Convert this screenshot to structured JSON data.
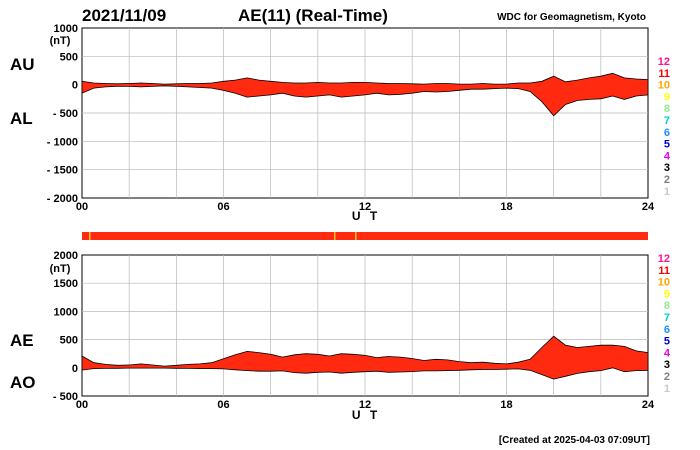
{
  "header": {
    "date": "2021/11/09",
    "title": "AE(11) (Real-Time)",
    "source": "WDC for Geomagnetism, Kyoto"
  },
  "footer": {
    "created": "[Created at 2025-04-03 07:09UT]"
  },
  "colors": {
    "fill": "#ff2a10",
    "station_bar": "#ff2a10",
    "station_bar_marks": "#f0c020"
  },
  "stations": {
    "labels": [
      "12",
      "11",
      "10",
      "9",
      "8",
      "7",
      "6",
      "5",
      "4",
      "3",
      "2",
      "1"
    ],
    "colors": [
      "#ff1493",
      "#ff0000",
      "#ffa500",
      "#ffff00",
      "#90ee90",
      "#00ced1",
      "#1e90ff",
      "#0000cd",
      "#ee00ee",
      "#000000",
      "#808080",
      "#c8c8c8"
    ]
  },
  "chart_data": [
    {
      "type": "area",
      "series_labels": [
        "AU",
        "AL"
      ],
      "unit": "(nT)",
      "xlabel": "U T",
      "xticks": [
        0,
        6,
        12,
        18,
        24
      ],
      "xtick_labels": [
        "00",
        "06",
        "12",
        "18",
        "24"
      ],
      "xlim": [
        0,
        24
      ],
      "ylim": [
        -2000,
        1000
      ],
      "yticks": [
        1000,
        500,
        0,
        -500,
        -1000,
        -1500,
        -2000
      ],
      "ytick_labels": [
        "1000",
        "500",
        "0",
        "- 500",
        "- 1000",
        "- 1500",
        "- 2000"
      ],
      "grid": true,
      "x": [
        0,
        0.5,
        1,
        1.5,
        2,
        2.5,
        3,
        3.5,
        4,
        4.5,
        5,
        5.5,
        6,
        6.5,
        7,
        7.5,
        8,
        8.5,
        9,
        9.5,
        10,
        10.5,
        11,
        11.5,
        12,
        12.5,
        13,
        13.5,
        14,
        14.5,
        15,
        15.5,
        16,
        16.5,
        17,
        17.5,
        18,
        18.5,
        19,
        19.5,
        20,
        20.5,
        21,
        21.5,
        22,
        22.5,
        23,
        23.5,
        24
      ],
      "upper": [
        60,
        30,
        20,
        15,
        20,
        30,
        20,
        10,
        15,
        20,
        20,
        30,
        60,
        80,
        120,
        80,
        60,
        40,
        30,
        30,
        40,
        30,
        30,
        40,
        40,
        30,
        20,
        20,
        15,
        10,
        20,
        20,
        10,
        10,
        20,
        10,
        10,
        30,
        30,
        60,
        150,
        50,
        80,
        120,
        150,
        200,
        120,
        100,
        90
      ],
      "lower": [
        -150,
        -60,
        -40,
        -30,
        -30,
        -40,
        -30,
        -20,
        -30,
        -40,
        -50,
        -60,
        -100,
        -150,
        -220,
        -200,
        -180,
        -150,
        -200,
        -220,
        -200,
        -180,
        -220,
        -200,
        -180,
        -150,
        -180,
        -170,
        -150,
        -120,
        -130,
        -120,
        -100,
        -80,
        -80,
        -70,
        -60,
        -70,
        -120,
        -300,
        -550,
        -350,
        -280,
        -260,
        -250,
        -200,
        -260,
        -200,
        -180
      ]
    },
    {
      "type": "area",
      "series_labels": [
        "AE",
        "AO"
      ],
      "unit": "(nT)",
      "xlabel": "U T",
      "xticks": [
        0,
        6,
        12,
        18,
        24
      ],
      "xtick_labels": [
        "00",
        "06",
        "12",
        "18",
        "24"
      ],
      "xlim": [
        0,
        24
      ],
      "ylim": [
        -500,
        2000
      ],
      "yticks": [
        2000,
        1500,
        1000,
        500,
        0,
        -500
      ],
      "ytick_labels": [
        "2000",
        "1500",
        "1000",
        "500",
        "0",
        "- 500"
      ],
      "grid": true,
      "x": [
        0,
        0.5,
        1,
        1.5,
        2,
        2.5,
        3,
        3.5,
        4,
        4.5,
        5,
        5.5,
        6,
        6.5,
        7,
        7.5,
        8,
        8.5,
        9,
        9.5,
        10,
        10.5,
        11,
        11.5,
        12,
        12.5,
        13,
        13.5,
        14,
        14.5,
        15,
        15.5,
        16,
        16.5,
        17,
        17.5,
        18,
        18.5,
        19,
        19.5,
        20,
        20.5,
        21,
        21.5,
        22,
        22.5,
        23,
        23.5,
        24
      ],
      "upper": [
        210,
        90,
        60,
        45,
        50,
        70,
        50,
        30,
        45,
        60,
        70,
        90,
        160,
        230,
        290,
        270,
        240,
        190,
        230,
        250,
        240,
        210,
        250,
        240,
        220,
        180,
        200,
        190,
        165,
        130,
        150,
        140,
        110,
        90,
        100,
        80,
        70,
        100,
        150,
        360,
        560,
        400,
        360,
        380,
        400,
        400,
        380,
        300,
        270
      ],
      "lower": [
        -40,
        -15,
        -10,
        -8,
        -5,
        -5,
        -5,
        -5,
        -8,
        -10,
        -15,
        -15,
        -20,
        -35,
        -50,
        -60,
        -60,
        -55,
        -85,
        -95,
        -80,
        -75,
        -95,
        -80,
        -70,
        -60,
        -80,
        -75,
        -68,
        -55,
        -55,
        -50,
        -45,
        -35,
        -30,
        -30,
        -25,
        -20,
        -45,
        -120,
        -200,
        -150,
        -100,
        -70,
        -50,
        0,
        -70,
        -50,
        -45
      ]
    }
  ]
}
